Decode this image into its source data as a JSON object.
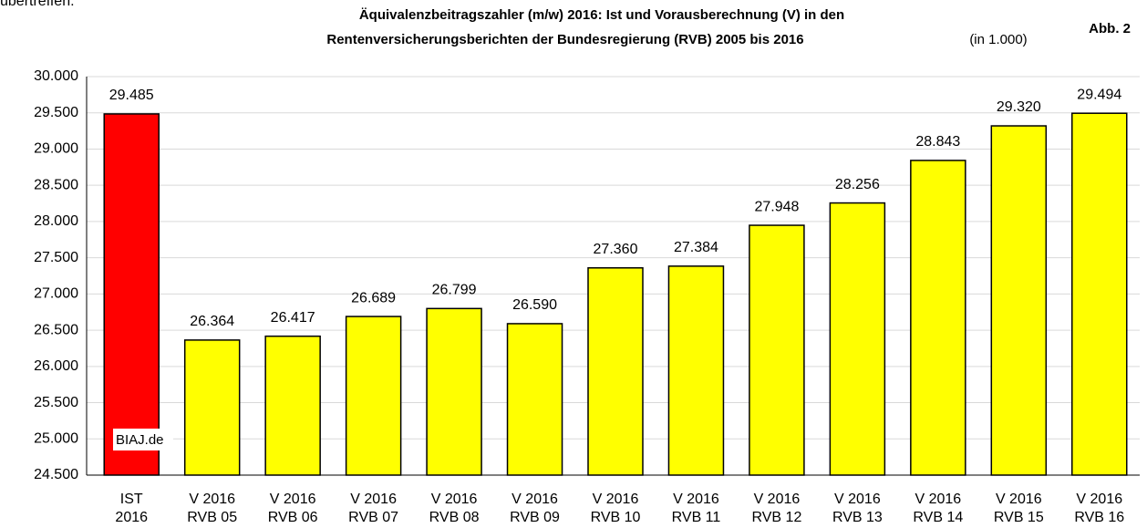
{
  "top_text": "übertreffen.",
  "chart_data": {
    "type": "bar",
    "title": [
      "Äquivalenzbeitragszahler  (m/w) 2016: Ist und Vorausberechnung (V) in den",
      "Rentenversicherungsberichten der Bundesregierung (RVB) 2005 bis 2016"
    ],
    "subtitle": "(in 1.000)",
    "figure_label": "Abb. 2",
    "watermark": "BIAJ.de",
    "categories": [
      [
        "IST",
        "2016"
      ],
      [
        "V 2016",
        "RVB 05"
      ],
      [
        "V 2016",
        "RVB 06"
      ],
      [
        "V 2016",
        "RVB 07"
      ],
      [
        "V 2016",
        "RVB 08"
      ],
      [
        "V 2016",
        "RVB 09"
      ],
      [
        "V 2016",
        "RVB 10"
      ],
      [
        "V 2016",
        "RVB 11"
      ],
      [
        "V 2016",
        "RVB 12"
      ],
      [
        "V 2016",
        "RVB 13"
      ],
      [
        "V 2016",
        "RVB 14"
      ],
      [
        "V 2016",
        "RVB 15"
      ],
      [
        "V 2016",
        "RVB 16"
      ]
    ],
    "values": [
      29485,
      26364,
      26417,
      26689,
      26799,
      26590,
      27360,
      27384,
      27948,
      28256,
      28843,
      29320,
      29494
    ],
    "value_labels": [
      "29.485",
      "26.364",
      "26.417",
      "26.689",
      "26.799",
      "26.590",
      "27.360",
      "27.384",
      "27.948",
      "28.256",
      "28.843",
      "29.320",
      "29.494"
    ],
    "colors": [
      "#ff0000",
      "#ffff00",
      "#ffff00",
      "#ffff00",
      "#ffff00",
      "#ffff00",
      "#ffff00",
      "#ffff00",
      "#ffff00",
      "#ffff00",
      "#ffff00",
      "#ffff00",
      "#ffff00"
    ],
    "ylim": [
      24500,
      30000
    ],
    "yticks": [
      {
        "value": 24500,
        "label": "24.500"
      },
      {
        "value": 25000,
        "label": "25.000"
      },
      {
        "value": 25500,
        "label": "25.500"
      },
      {
        "value": 26000,
        "label": "26.000"
      },
      {
        "value": 26500,
        "label": "26.500"
      },
      {
        "value": 27000,
        "label": "27.000"
      },
      {
        "value": 27500,
        "label": "27.500"
      },
      {
        "value": 28000,
        "label": "28.000"
      },
      {
        "value": 28500,
        "label": "28.500"
      },
      {
        "value": 29000,
        "label": "29.000"
      },
      {
        "value": 29500,
        "label": "29.500"
      },
      {
        "value": 30000,
        "label": "30.000"
      }
    ],
    "grid": true
  }
}
